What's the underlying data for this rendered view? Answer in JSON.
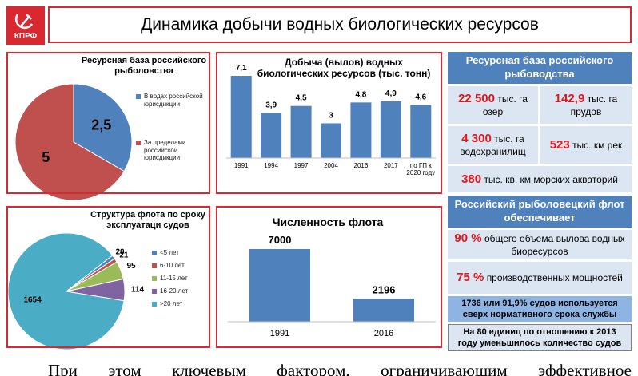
{
  "header": {
    "logo": "КПРФ",
    "title": "Динамика добычи водных биологических ресурсов"
  },
  "chart_data": [
    {
      "type": "pie",
      "title": "Ресурсная база российского рыболовства",
      "categories": [
        "В водах российской юрисдикции",
        "За пределами российской юрисдикции"
      ],
      "values": [
        2.5,
        5
      ],
      "value_labels": [
        "2,5",
        "5"
      ],
      "colors": [
        "#4f81bd",
        "#c0504d"
      ],
      "legend": "right"
    },
    {
      "type": "bar",
      "title": "Добыча (вылов) водных биологических ресурсов (тыс. тонн)",
      "categories": [
        "1991",
        "1994",
        "1997",
        "2004",
        "2016",
        "2017",
        "по ГП к 2020 году"
      ],
      "values": [
        7.1,
        3.9,
        4.5,
        3,
        4.8,
        4.9,
        4.6
      ],
      "value_labels": [
        "7,1",
        "3,9",
        "4,5",
        "3",
        "4,8",
        "4,9",
        "4,6"
      ],
      "color": "#4f81bd"
    },
    {
      "type": "pie",
      "title": "Структура флота по сроку эксплуатаци судов",
      "categories": [
        "<5 лет",
        "6-10 лет",
        "11-15 лет",
        "16-20 лет",
        ">20 лет"
      ],
      "values": [
        20,
        21,
        95,
        114,
        1654
      ],
      "colors": [
        "#4f81bd",
        "#c0504d",
        "#9bbb59",
        "#8064a2",
        "#4bacc6"
      ],
      "legend": "right"
    },
    {
      "type": "bar",
      "title": "Численность флота",
      "categories": [
        "1991",
        "2016"
      ],
      "values": [
        7000,
        2196
      ],
      "color": "#4f81bd"
    }
  ],
  "side": {
    "resources": {
      "title": "Ресурсная база российского рыбоводства",
      "items": [
        {
          "value": "22 500",
          "unit": "тыс. га озер"
        },
        {
          "value": "142,9",
          "unit": "тыс. га прудов"
        },
        {
          "value": "4 300",
          "unit": "тыс. га водохранилищ"
        },
        {
          "value": "523",
          "unit": "тыс. км рек"
        },
        {
          "value": "380",
          "unit": "тыс. кв. км морских акваторий"
        }
      ]
    },
    "fleet": {
      "title": "Российский рыболовецкий флот обеспечивает",
      "items": [
        {
          "value": "90 %",
          "text": "общего объема вылова водных биоресурсов"
        },
        {
          "value": "75 %",
          "text": "производственных мощностей"
        }
      ],
      "notes": [
        "1736 или 91,9% судов используется сверх нормативного срока службы",
        "На 80 единиц по отношению к 2013 году уменьшилось количество судов"
      ]
    }
  },
  "footer_text": "При этом ключевым фактором, ограничивающим эффективное"
}
